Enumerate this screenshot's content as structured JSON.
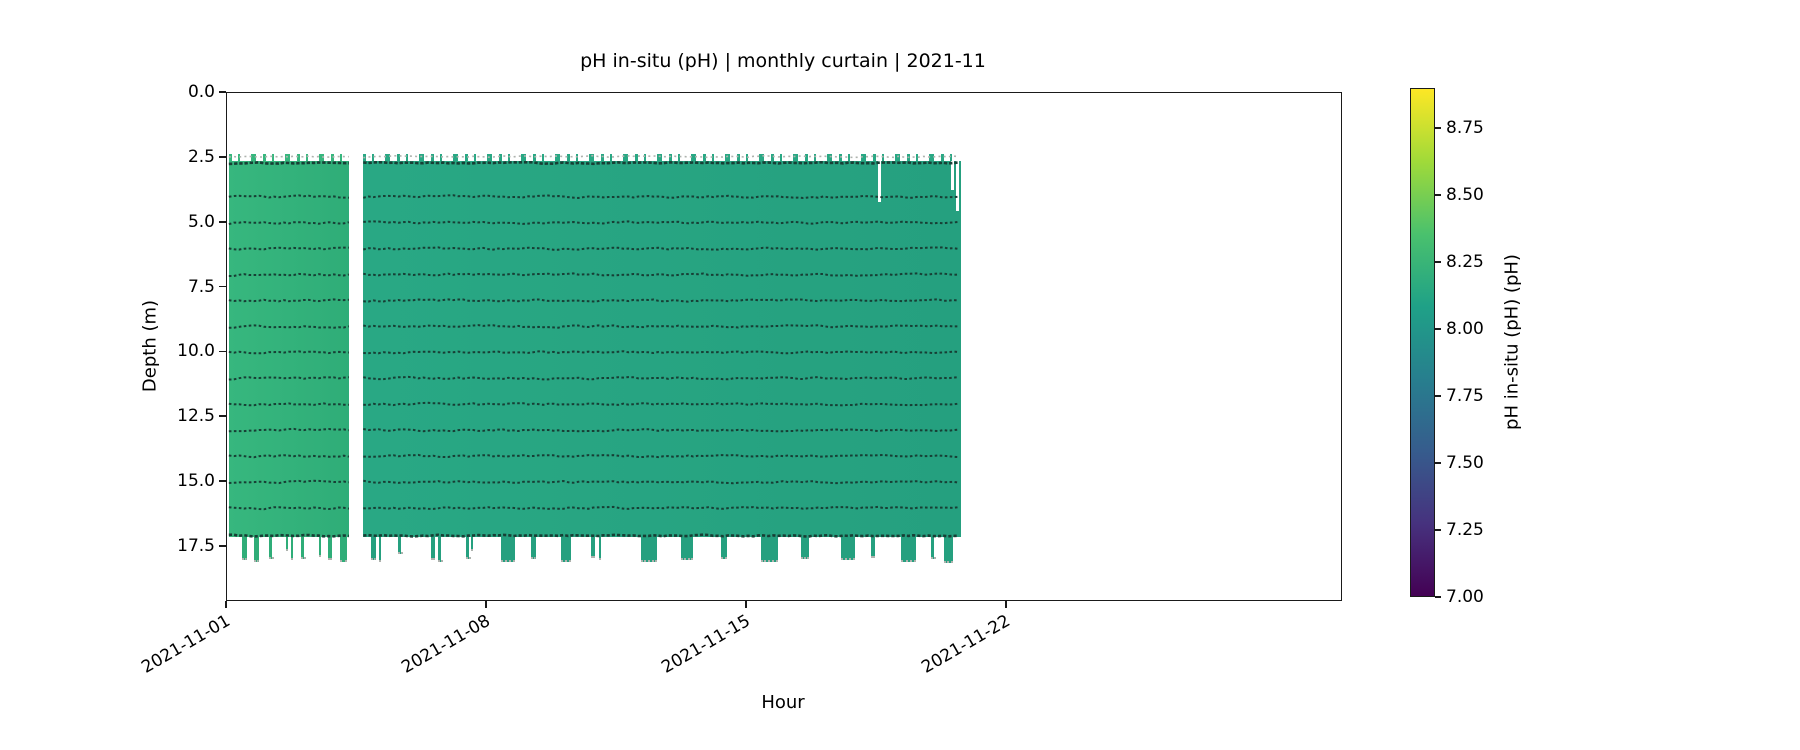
{
  "chart_data": {
    "type": "heatmap",
    "title": "pH in-situ (pH) | monthly curtain | 2021-11",
    "xlabel": "Hour",
    "ylabel": "Depth (m)",
    "grid": false,
    "x_axis": {
      "lim_days": [
        0,
        30
      ],
      "tick_days": [
        0,
        7,
        14,
        21
      ],
      "tick_labels": [
        "2021-11-01",
        "2021-11-08",
        "2021-11-15",
        "2021-11-22"
      ]
    },
    "y_axis": {
      "lim": [
        0,
        19.55
      ],
      "ticks": [
        {
          "value": 0.0,
          "label": "0.0"
        },
        {
          "value": 2.5,
          "label": "2.5"
        },
        {
          "value": 5.0,
          "label": "5.0"
        },
        {
          "value": 7.5,
          "label": "7.5"
        },
        {
          "value": 10.0,
          "label": "10.0"
        },
        {
          "value": 12.5,
          "label": "12.5"
        },
        {
          "value": 15.0,
          "label": "15.0"
        },
        {
          "value": 17.5,
          "label": "17.5"
        }
      ]
    },
    "colorbar": {
      "label": "pH in-situ (pH) (pH)",
      "colormap": "viridis",
      "vmin": 7.0,
      "vmax": 8.9,
      "ticks": [
        {
          "value": 7.0,
          "label": "7.00"
        },
        {
          "value": 7.25,
          "label": "7.25"
        },
        {
          "value": 7.5,
          "label": "7.50"
        },
        {
          "value": 7.75,
          "label": "7.75"
        },
        {
          "value": 8.0,
          "label": "8.00"
        },
        {
          "value": 8.25,
          "label": "8.25"
        },
        {
          "value": 8.5,
          "label": "8.50"
        },
        {
          "value": 8.75,
          "label": "8.75"
        }
      ],
      "gradient_stops": [
        "#440154",
        "#46327e",
        "#365c8d",
        "#277f8e",
        "#1fa187",
        "#4ac16d",
        "#a0da39",
        "#fde725"
      ]
    },
    "curtain": {
      "observed_ph_range": [
        8.05,
        8.35
      ],
      "depth_top_m": 2.62,
      "depth_bottom_m": 17.12,
      "sensor_line_depths_m": [
        4,
        5,
        6,
        7,
        8,
        9,
        10,
        11,
        12,
        13,
        14,
        15,
        16
      ],
      "segments": [
        {
          "start_day": 0.05,
          "end_day": 3.29,
          "mean_ph": 8.3,
          "fill": "#37b77e",
          "fill2": "#2fad78"
        },
        {
          "start_day": 3.67,
          "end_day": 19.77,
          "mean_ph": 8.15,
          "fill": "#29a884",
          "fill2": "#25a07f"
        }
      ],
      "drips": [
        {
          "seg": 0,
          "day": 0.4,
          "w": 0.15,
          "to_depth": 17.95
        },
        {
          "seg": 0,
          "day": 0.73,
          "w": 0.12,
          "to_depth": 18.0
        },
        {
          "seg": 0,
          "day": 1.13,
          "w": 0.08,
          "to_depth": 17.9
        },
        {
          "seg": 0,
          "day": 1.59,
          "w": 0.05,
          "to_depth": 17.6
        },
        {
          "seg": 0,
          "day": 1.72,
          "w": 0.05,
          "to_depth": 17.95
        },
        {
          "seg": 0,
          "day": 1.99,
          "w": 0.08,
          "to_depth": 17.9
        },
        {
          "seg": 0,
          "day": 2.48,
          "w": 0.05,
          "to_depth": 17.8
        },
        {
          "seg": 0,
          "day": 2.72,
          "w": 0.1,
          "to_depth": 17.95
        },
        {
          "seg": 0,
          "day": 3.05,
          "w": 0.18,
          "to_depth": 18.0
        },
        {
          "seg": 1,
          "day": 3.88,
          "w": 0.12,
          "to_depth": 17.95
        },
        {
          "seg": 1,
          "day": 4.09,
          "w": 0.06,
          "to_depth": 18.0
        },
        {
          "seg": 1,
          "day": 4.6,
          "w": 0.08,
          "to_depth": 17.7
        },
        {
          "seg": 1,
          "day": 5.49,
          "w": 0.12,
          "to_depth": 17.95
        },
        {
          "seg": 1,
          "day": 5.68,
          "w": 0.08,
          "to_depth": 18.0
        },
        {
          "seg": 1,
          "day": 6.43,
          "w": 0.1,
          "to_depth": 17.9
        },
        {
          "seg": 1,
          "day": 6.57,
          "w": 0.06,
          "to_depth": 17.6
        },
        {
          "seg": 1,
          "day": 7.38,
          "w": 0.38,
          "to_depth": 18.0
        },
        {
          "seg": 1,
          "day": 8.18,
          "w": 0.15,
          "to_depth": 17.9
        },
        {
          "seg": 1,
          "day": 8.99,
          "w": 0.27,
          "to_depth": 18.0
        },
        {
          "seg": 1,
          "day": 9.8,
          "w": 0.1,
          "to_depth": 17.85
        },
        {
          "seg": 1,
          "day": 10.01,
          "w": 0.06,
          "to_depth": 17.95
        },
        {
          "seg": 1,
          "day": 11.14,
          "w": 0.43,
          "to_depth": 18.0
        },
        {
          "seg": 1,
          "day": 12.22,
          "w": 0.32,
          "to_depth": 17.95
        },
        {
          "seg": 1,
          "day": 13.3,
          "w": 0.16,
          "to_depth": 17.9
        },
        {
          "seg": 1,
          "day": 14.37,
          "w": 0.48,
          "to_depth": 18.0
        },
        {
          "seg": 1,
          "day": 15.45,
          "w": 0.22,
          "to_depth": 17.9
        },
        {
          "seg": 1,
          "day": 16.53,
          "w": 0.38,
          "to_depth": 17.95
        },
        {
          "seg": 1,
          "day": 17.34,
          "w": 0.12,
          "to_depth": 17.85
        },
        {
          "seg": 1,
          "day": 18.15,
          "w": 0.4,
          "to_depth": 18.0
        },
        {
          "seg": 1,
          "day": 18.95,
          "w": 0.1,
          "to_depth": 17.9
        },
        {
          "seg": 1,
          "day": 19.3,
          "w": 0.26,
          "to_depth": 18.05
        }
      ],
      "notches": [
        {
          "day": 17.53,
          "w": 0.09,
          "to_depth": 4.2
        },
        {
          "day": 19.5,
          "w": 0.08,
          "to_depth": 3.75
        },
        {
          "day": 19.64,
          "w": 0.06,
          "to_depth": 4.55
        }
      ]
    },
    "marker_color": "#173f35",
    "speckle_color": "#aeb3ae",
    "spine_color": "#1a1a1a"
  }
}
